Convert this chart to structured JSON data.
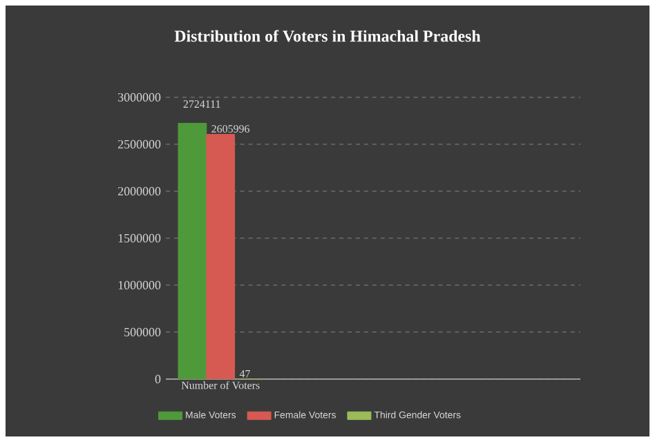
{
  "chart_data": {
    "type": "bar",
    "title": "Distribution of Voters in Himachal Pradesh",
    "categories": [
      "Number of Voters"
    ],
    "series": [
      {
        "name": "Male Voters",
        "color": "#4e9a3a",
        "values": [
          2724111
        ]
      },
      {
        "name": "Female Voters",
        "color": "#d65a52",
        "values": [
          2605996
        ]
      },
      {
        "name": "Third Gender Voters",
        "color": "#9bbb59",
        "values": [
          47
        ]
      }
    ],
    "ylim": [
      0,
      3000000
    ],
    "yticks": [
      0,
      500000,
      1000000,
      1500000,
      2000000,
      2500000,
      3000000
    ],
    "grid": "y",
    "legend": "bottom",
    "data_labels": true
  }
}
